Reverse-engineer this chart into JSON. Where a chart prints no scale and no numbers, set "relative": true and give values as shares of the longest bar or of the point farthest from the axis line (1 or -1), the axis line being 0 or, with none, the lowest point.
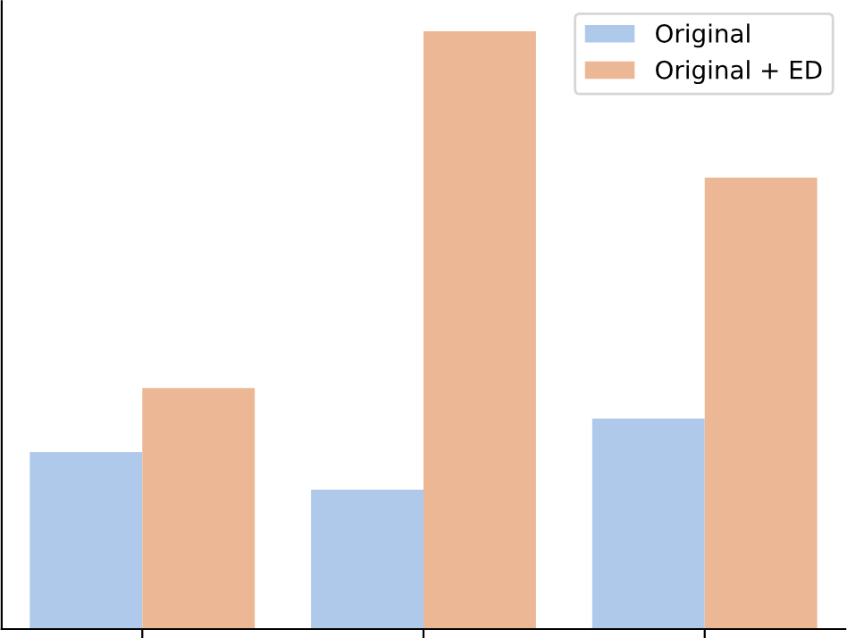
{
  "chart_data": {
    "type": "bar",
    "relative": true,
    "categories": [
      null,
      null,
      null
    ],
    "series": [
      {
        "name": "Original",
        "color": "#aec9e9",
        "values": [
          0.296,
          0.233,
          0.352
        ]
      },
      {
        "name": "Original + ED",
        "color": "#ecb795",
        "values": [
          0.403,
          1,
          0.755
        ]
      }
    ],
    "legend": "top right"
  }
}
